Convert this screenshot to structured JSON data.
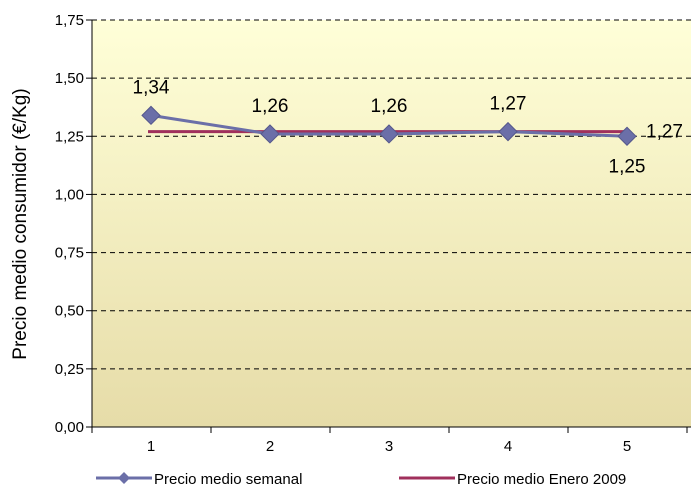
{
  "chart_data": {
    "type": "line",
    "title": "",
    "xlabel": "",
    "ylabel": "Precio medio consumidor (€/Kg)",
    "categories": [
      "1",
      "2",
      "3",
      "4",
      "5"
    ],
    "ylim": [
      0,
      1.75
    ],
    "yticks": [
      "0,00",
      "0,25",
      "0,50",
      "0,75",
      "1,00",
      "1,25",
      "1,50",
      "1,75"
    ],
    "grid": true,
    "legend_position": "bottom",
    "series": [
      {
        "name": "Precio medio semanal",
        "values": [
          1.34,
          1.26,
          1.26,
          1.27,
          1.25
        ],
        "labels": [
          "1,34",
          "1,26",
          "1,26",
          "1,27",
          "1,25"
        ],
        "color": "#6B6FA8",
        "marker": "diamond"
      },
      {
        "name": "Precio medio Enero 2009",
        "values": [
          1.27,
          1.27,
          1.27,
          1.27,
          1.27
        ],
        "end_label": "1,27",
        "color": "#A0305C"
      }
    ],
    "colors": {
      "plot_bg_top": "#FFFFD8",
      "plot_bg_bottom": "#E6DCA8"
    }
  }
}
